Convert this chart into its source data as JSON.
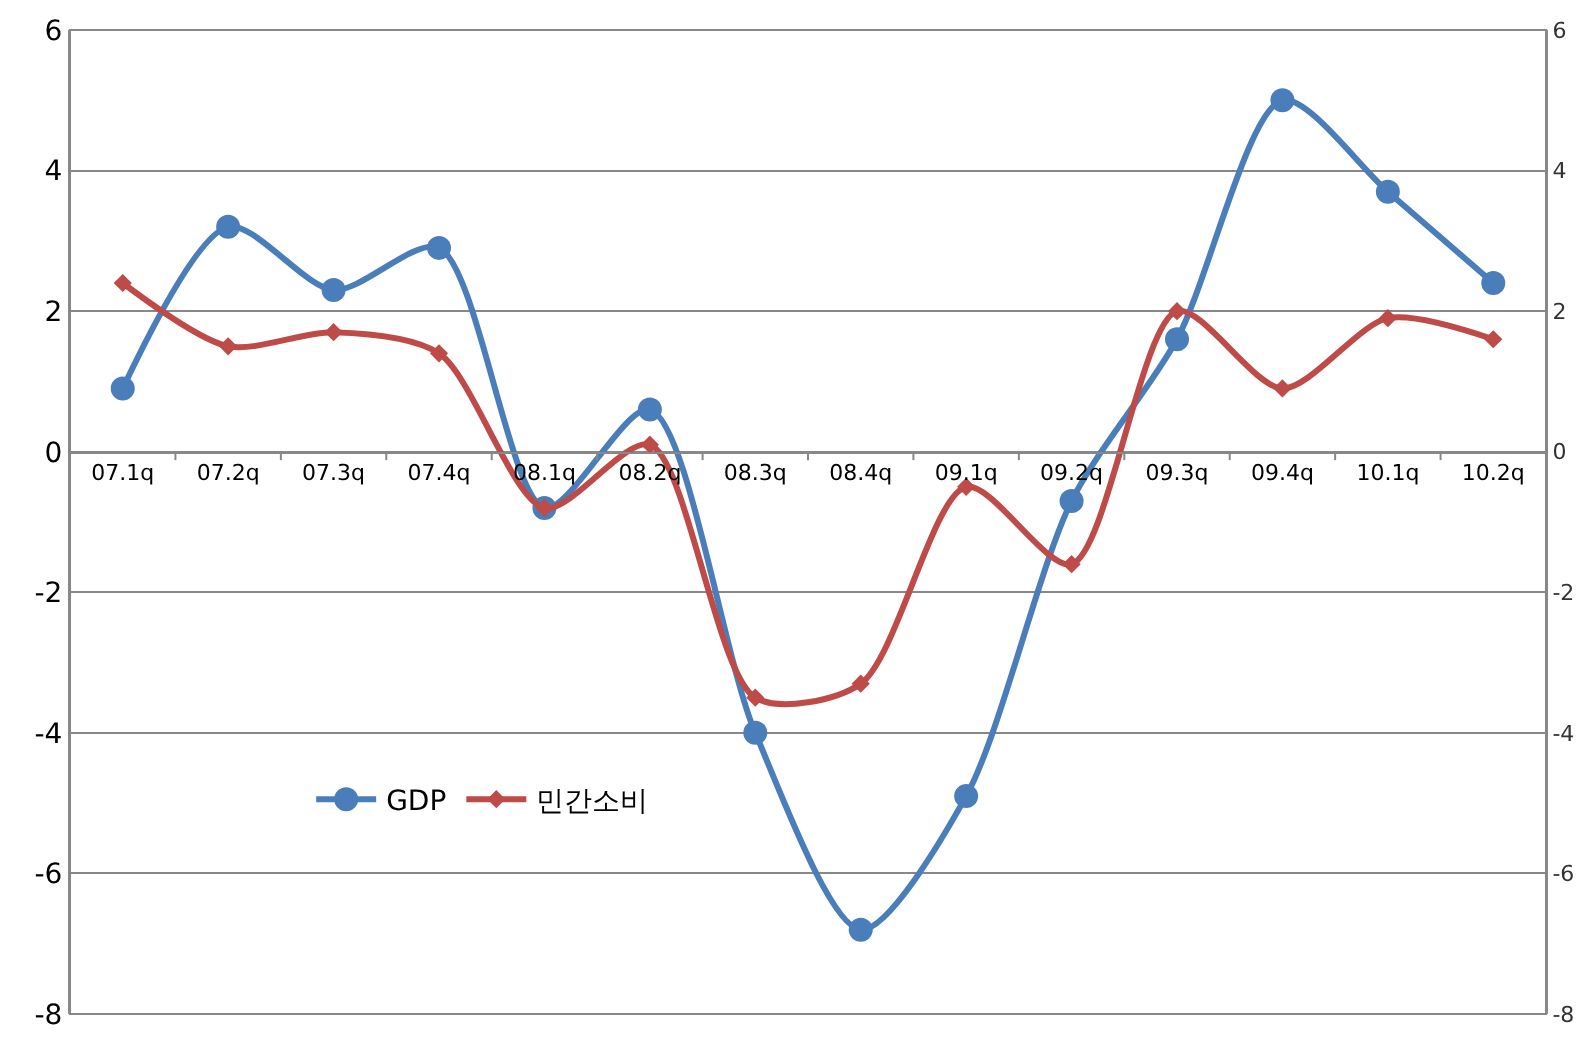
{
  "chart_data": {
    "type": "line",
    "categories": [
      "07.1q",
      "07.2q",
      "07.3q",
      "07.4q",
      "08.1q",
      "08.2q",
      "08.3q",
      "08.4q",
      "09.1q",
      "09.2q",
      "09.3q",
      "09.4q",
      "10.1q",
      "10.2q"
    ],
    "series": [
      {
        "name": "GDP",
        "color": "#4a7ebb",
        "marker": "circle",
        "values": [
          0.9,
          3.2,
          2.3,
          2.9,
          -0.8,
          0.6,
          -4.0,
          -6.8,
          -4.9,
          -0.7,
          1.6,
          5.0,
          3.7,
          2.4
        ]
      },
      {
        "name": "민간소비",
        "color": "#be4b48",
        "marker": "diamond",
        "values": [
          2.4,
          1.5,
          1.7,
          1.4,
          -0.8,
          0.1,
          -3.5,
          -3.3,
          -0.5,
          -1.6,
          2.0,
          0.9,
          1.9,
          1.6
        ]
      }
    ],
    "ylim": [
      -8,
      6
    ],
    "yticks": [
      -8,
      -6,
      -4,
      -2,
      0,
      2,
      4,
      6
    ],
    "y2lim": [
      -8,
      6
    ],
    "y2ticks": [
      -8,
      -6,
      -4,
      -2,
      0,
      2,
      4,
      6
    ],
    "grid": "y",
    "legend": "bottom left",
    "line_style": "solid"
  }
}
